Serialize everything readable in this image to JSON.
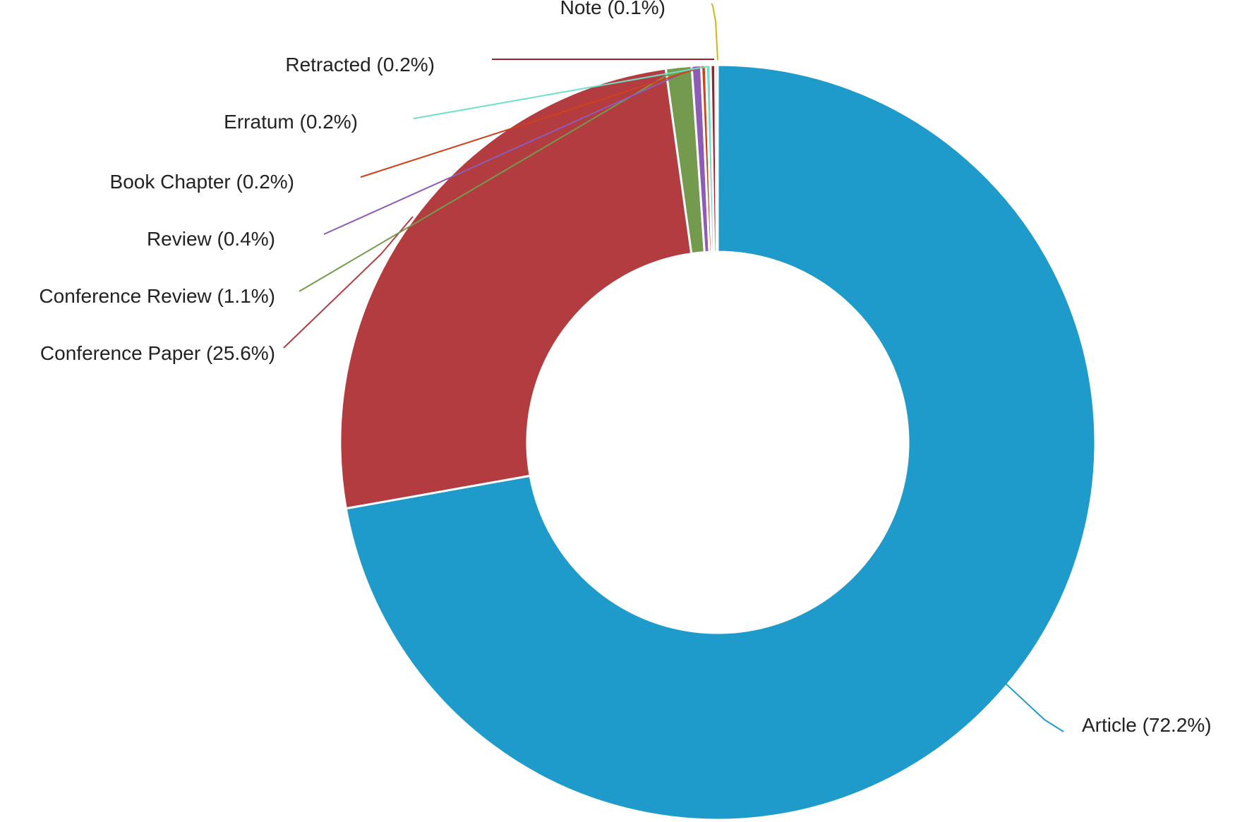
{
  "chart_data": {
    "type": "pie",
    "donut": true,
    "slices": [
      {
        "name": "Article",
        "value": 72.2,
        "label": "Article (72.2%)",
        "color": "#1f9bcb"
      },
      {
        "name": "Conference Paper",
        "value": 25.6,
        "label": "Conference Paper (25.6%)",
        "color": "#b33c40"
      },
      {
        "name": "Conference Review",
        "value": 1.1,
        "label": "Conference Review (1.1%)",
        "color": "#749a4d"
      },
      {
        "name": "Review",
        "value": 0.4,
        "label": "Review (0.4%)",
        "color": "#8d5cb7"
      },
      {
        "name": "Book Chapter",
        "value": 0.2,
        "label": "Book Chapter (0.2%)",
        "color": "#d0411a"
      },
      {
        "name": "Erratum",
        "value": 0.2,
        "label": "Erratum (0.2%)",
        "color": "#6ee0c8"
      },
      {
        "name": "Retracted",
        "value": 0.2,
        "label": "Retracted (0.2%)",
        "color": "#9c1f2a"
      },
      {
        "name": "Note",
        "value": 0.1,
        "label": "Note (0.1%)",
        "color": "#d6b419"
      }
    ]
  }
}
